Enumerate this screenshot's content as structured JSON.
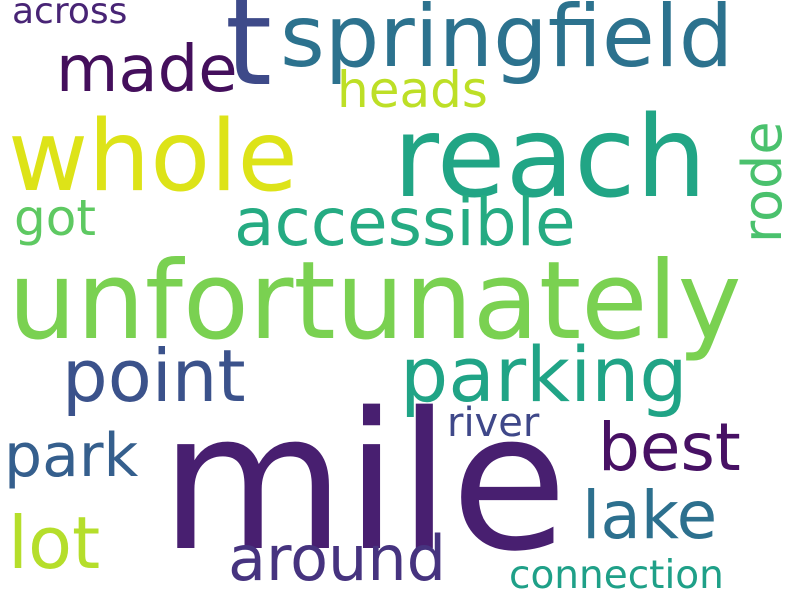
{
  "words": [
    {
      "text": "mile",
      "color": "#481f70"
    },
    {
      "text": "unfortunately",
      "color": "#7ad151"
    },
    {
      "text": "springfield",
      "color": "#2c728e"
    },
    {
      "text": "reach",
      "color": "#21a585"
    },
    {
      "text": "whole",
      "color": "#dde318"
    },
    {
      "text": "t",
      "color": "#3e4a89"
    },
    {
      "text": "accessible",
      "color": "#25ab82"
    },
    {
      "text": "parking",
      "color": "#20a486"
    },
    {
      "text": "point",
      "color": "#3b528b"
    },
    {
      "text": "made",
      "color": "#440f5c"
    },
    {
      "text": "best",
      "color": "#471164"
    },
    {
      "text": "lake",
      "color": "#2d708e"
    },
    {
      "text": "lot",
      "color": "#b5de2b"
    },
    {
      "text": "around",
      "color": "#46337f"
    },
    {
      "text": "park",
      "color": "#355f8d"
    },
    {
      "text": "rode",
      "color": "#4ac16d"
    },
    {
      "text": "heads",
      "color": "#bddf26"
    },
    {
      "text": "got",
      "color": "#5ec962"
    },
    {
      "text": "river",
      "color": "#3f4889"
    },
    {
      "text": "connection",
      "color": "#1fa088"
    },
    {
      "text": "across",
      "color": "#482475"
    }
  ]
}
